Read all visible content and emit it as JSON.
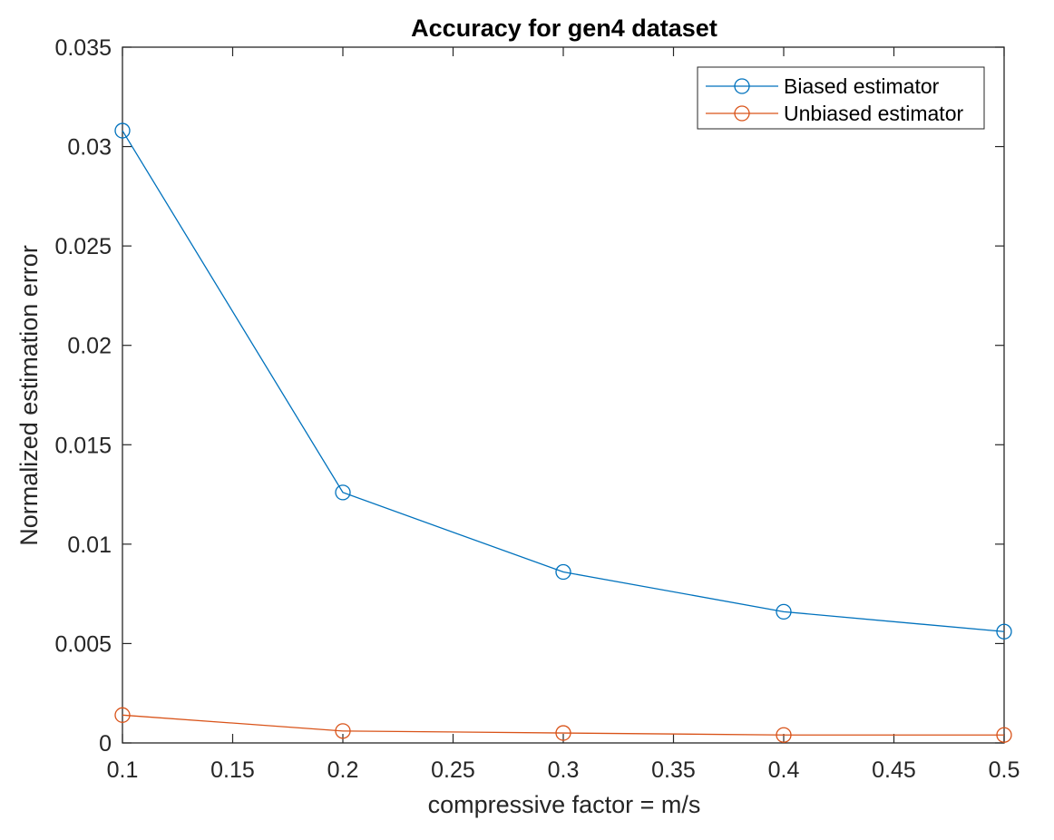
{
  "chart_data": {
    "type": "line",
    "title": "Accuracy for gen4 dataset",
    "xlabel": "compressive factor = m/s",
    "ylabel": "Normalized estimation error",
    "xlim": [
      0.1,
      0.5
    ],
    "ylim": [
      0,
      0.035
    ],
    "x_ticks": [
      0.1,
      0.15,
      0.2,
      0.25,
      0.3,
      0.35,
      0.4,
      0.45,
      0.5
    ],
    "x_tick_labels": [
      "0.1",
      "0.15",
      "0.2",
      "0.25",
      "0.3",
      "0.35",
      "0.4",
      "0.45",
      "0.5"
    ],
    "y_ticks": [
      0,
      0.005,
      0.01,
      0.015,
      0.02,
      0.025,
      0.03,
      0.035
    ],
    "y_tick_labels": [
      "0",
      "0.005",
      "0.01",
      "0.015",
      "0.02",
      "0.025",
      "0.03",
      "0.035"
    ],
    "grid": false,
    "box": true,
    "legend_position": "top-right",
    "marker": "circle",
    "x": [
      0.1,
      0.2,
      0.3,
      0.4,
      0.5
    ],
    "series": [
      {
        "name": "Biased estimator",
        "color": "#0072BD",
        "values": [
          0.0308,
          0.0126,
          0.0086,
          0.0066,
          0.0056
        ]
      },
      {
        "name": "Unbiased estimator",
        "color": "#D95319",
        "values": [
          0.0014,
          0.0006,
          0.0005,
          0.0004,
          0.0004
        ]
      }
    ]
  }
}
